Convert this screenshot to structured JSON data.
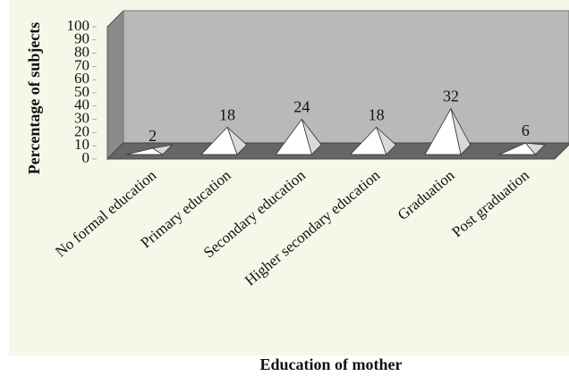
{
  "chart_data": {
    "type": "pyramid",
    "ylabel": "Percentage of subjects",
    "xlabel": "Education of mother",
    "categories": [
      "No formal education",
      "Primary education",
      "Secondary education",
      "Higher secondary education",
      "Graduation",
      "Post graduation"
    ],
    "values": [
      2,
      18,
      24,
      18,
      32,
      6
    ],
    "ylim": [
      0,
      100
    ],
    "yticks": [
      0,
      10,
      20,
      30,
      40,
      50,
      60,
      70,
      80,
      90,
      100
    ],
    "color": "#ffffff"
  }
}
